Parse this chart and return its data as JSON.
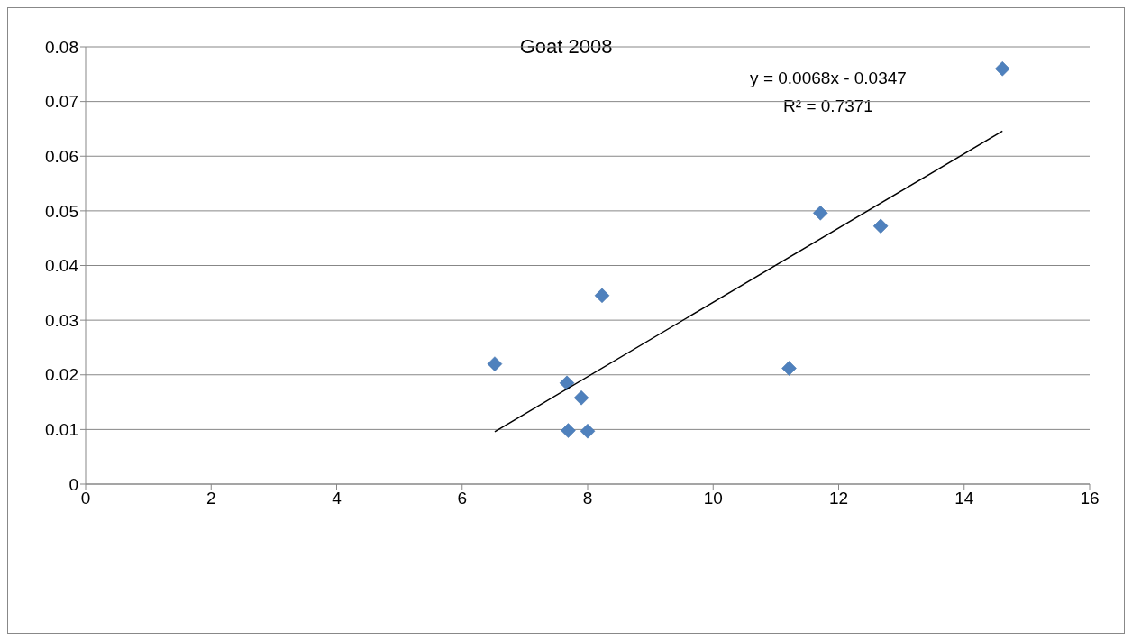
{
  "chart_data": {
    "type": "scatter",
    "title": "Goat 2008",
    "marker": "diamond",
    "grid": "y",
    "xlim": [
      0,
      16
    ],
    "xticks": [
      0,
      2,
      4,
      6,
      8,
      10,
      12,
      14,
      16
    ],
    "ylim": [
      0,
      0.08
    ],
    "yticks": [
      0,
      0.01,
      0.02,
      0.03,
      0.04,
      0.05,
      0.06,
      0.07,
      0.08
    ],
    "series": [
      {
        "color": "#4f81bd",
        "x": [
          6.52,
          7.67,
          7.69,
          7.9,
          8.0,
          8.23,
          11.21,
          11.71,
          12.67,
          14.61
        ],
        "values": [
          0.022,
          0.0185,
          0.0098,
          0.0158,
          0.0097,
          0.0345,
          0.0212,
          0.0496,
          0.0472,
          0.076
        ]
      },
      {
        "type": "line",
        "color": "#000000",
        "marker": "none",
        "x": [
          6.52,
          14.61
        ],
        "values": [
          0.0096,
          0.0646
        ]
      }
    ],
    "annotations": [
      "y = 0.0068x - 0.0347",
      "R² = 0.7371"
    ]
  }
}
